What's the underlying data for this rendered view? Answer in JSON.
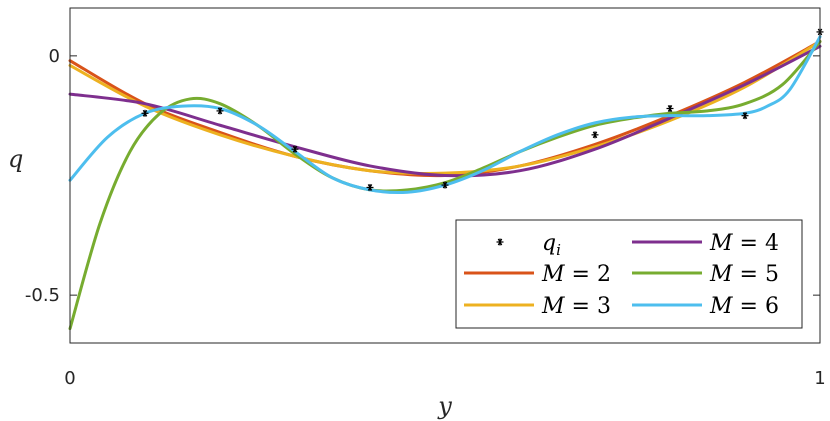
{
  "chart_data": {
    "type": "line",
    "xlabel": "y",
    "ylabel": "q",
    "xlim": [
      0,
      1
    ],
    "ylim": [
      -0.6,
      0.1
    ],
    "x_ticks": [
      0,
      1
    ],
    "x_tick_labels": [
      "0",
      "1"
    ],
    "y_ticks": [
      0,
      -0.5
    ],
    "y_tick_labels": [
      "0",
      "-0.5"
    ],
    "grid": false,
    "legend_position": "bottom-right",
    "legend_columns": 2,
    "points": {
      "name": "q_i",
      "label_base": "q",
      "label_sub": "i",
      "color": "#000000",
      "x": [
        0.1,
        0.2,
        0.3,
        0.4,
        0.5,
        0.7,
        0.8,
        0.9,
        1.0
      ],
      "y": [
        -0.12,
        -0.115,
        -0.195,
        -0.275,
        -0.27,
        -0.165,
        -0.11,
        -0.125,
        0.05
      ]
    },
    "series": [
      {
        "name": "M = 2",
        "label_lhs": "M",
        "label_rhs": "2",
        "color": "#D95319",
        "x": [
          0,
          0.1,
          0.2,
          0.3,
          0.4,
          0.5,
          0.6,
          0.7,
          0.8,
          0.9,
          1.0
        ],
        "y": [
          -0.01,
          -0.1,
          -0.16,
          -0.21,
          -0.24,
          -0.25,
          -0.23,
          -0.185,
          -0.125,
          -0.055,
          0.03
        ]
      },
      {
        "name": "M = 3",
        "label_lhs": "M",
        "label_rhs": "3",
        "color": "#EDB120",
        "x": [
          0,
          0.1,
          0.2,
          0.3,
          0.4,
          0.5,
          0.6,
          0.7,
          0.8,
          0.9,
          1.0
        ],
        "y": [
          -0.02,
          -0.105,
          -0.165,
          -0.21,
          -0.24,
          -0.245,
          -0.23,
          -0.19,
          -0.135,
          -0.065,
          0.03
        ]
      },
      {
        "name": "M = 4",
        "label_lhs": "M",
        "label_rhs": "4",
        "color": "#7E2F8E",
        "x": [
          0,
          0.1,
          0.2,
          0.3,
          0.4,
          0.5,
          0.6,
          0.7,
          0.8,
          0.9,
          1.0
        ],
        "y": [
          -0.08,
          -0.1,
          -0.145,
          -0.19,
          -0.23,
          -0.25,
          -0.24,
          -0.195,
          -0.13,
          -0.06,
          0.02
        ]
      },
      {
        "name": "M = 5",
        "label_lhs": "M",
        "label_rhs": "5",
        "color": "#77AC30",
        "x": [
          0,
          0.04,
          0.08,
          0.12,
          0.16,
          0.2,
          0.25,
          0.3,
          0.35,
          0.4,
          0.45,
          0.5,
          0.55,
          0.6,
          0.65,
          0.7,
          0.75,
          0.8,
          0.85,
          0.9,
          0.95,
          1.0
        ],
        "y": [
          -0.57,
          -0.35,
          -0.2,
          -0.12,
          -0.09,
          -0.1,
          -0.145,
          -0.205,
          -0.255,
          -0.28,
          -0.28,
          -0.265,
          -0.235,
          -0.2,
          -0.17,
          -0.145,
          -0.13,
          -0.12,
          -0.115,
          -0.1,
          -0.06,
          0.03
        ]
      },
      {
        "name": "M = 6",
        "label_lhs": "M",
        "label_rhs": "6",
        "color": "#4DBEEE",
        "x": [
          0,
          0.05,
          0.1,
          0.15,
          0.2,
          0.25,
          0.3,
          0.35,
          0.4,
          0.45,
          0.5,
          0.55,
          0.6,
          0.65,
          0.7,
          0.75,
          0.8,
          0.85,
          0.9,
          0.93,
          0.96,
          1.0
        ],
        "y": [
          -0.26,
          -0.17,
          -0.12,
          -0.105,
          -0.11,
          -0.145,
          -0.2,
          -0.255,
          -0.28,
          -0.285,
          -0.27,
          -0.24,
          -0.2,
          -0.165,
          -0.14,
          -0.128,
          -0.125,
          -0.125,
          -0.12,
          -0.105,
          -0.07,
          0.04
        ]
      }
    ]
  }
}
